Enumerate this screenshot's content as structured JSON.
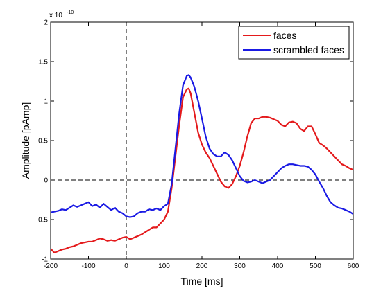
{
  "chart_data": {
    "type": "line",
    "title": "",
    "xlabel": "Time [ms]",
    "ylabel": "Amplitude [pAmp]",
    "xlim": [
      -200,
      600
    ],
    "ylim": [
      -1,
      2
    ],
    "y_scale_factor_label": "x 10",
    "y_scale_exponent_label": "-10",
    "x_ticks": [
      -200,
      -100,
      0,
      100,
      200,
      300,
      400,
      500,
      600
    ],
    "x_tick_labels": [
      "-200",
      "-100",
      "0",
      "100",
      "200",
      "300",
      "400",
      "500",
      "600"
    ],
    "y_ticks": [
      -1,
      -0.5,
      0,
      0.5,
      1,
      1.5,
      2
    ],
    "y_tick_labels": [
      "-1",
      "-0.5",
      "0",
      "0.5",
      "1",
      "1.5",
      "2"
    ],
    "grid": false,
    "legend_position": "top-right",
    "reference_lines": {
      "x": 0,
      "y": 0
    },
    "series": [
      {
        "name": "faces",
        "color": "#e41a1c",
        "x": [
          -200,
          -190,
          -180,
          -170,
          -160,
          -150,
          -140,
          -130,
          -120,
          -110,
          -100,
          -90,
          -80,
          -70,
          -60,
          -50,
          -40,
          -30,
          -20,
          -10,
          0,
          10,
          20,
          30,
          40,
          50,
          60,
          70,
          80,
          90,
          100,
          110,
          120,
          130,
          140,
          150,
          160,
          165,
          170,
          180,
          190,
          200,
          210,
          220,
          230,
          240,
          250,
          260,
          270,
          280,
          290,
          300,
          310,
          320,
          330,
          340,
          350,
          360,
          370,
          380,
          390,
          400,
          410,
          420,
          430,
          440,
          450,
          460,
          470,
          480,
          490,
          500,
          510,
          520,
          530,
          540,
          550,
          560,
          570,
          580,
          590,
          600
        ],
        "y": [
          -0.87,
          -0.92,
          -0.9,
          -0.88,
          -0.87,
          -0.85,
          -0.84,
          -0.82,
          -0.8,
          -0.79,
          -0.78,
          -0.78,
          -0.76,
          -0.74,
          -0.75,
          -0.77,
          -0.76,
          -0.77,
          -0.75,
          -0.73,
          -0.72,
          -0.75,
          -0.73,
          -0.71,
          -0.69,
          -0.66,
          -0.63,
          -0.6,
          -0.6,
          -0.55,
          -0.5,
          -0.4,
          -0.1,
          0.3,
          0.7,
          1.05,
          1.15,
          1.16,
          1.1,
          0.85,
          0.6,
          0.45,
          0.35,
          0.28,
          0.18,
          0.08,
          -0.02,
          -0.08,
          -0.1,
          -0.05,
          0.05,
          0.18,
          0.35,
          0.55,
          0.72,
          0.78,
          0.78,
          0.8,
          0.8,
          0.79,
          0.77,
          0.75,
          0.7,
          0.68,
          0.73,
          0.74,
          0.72,
          0.65,
          0.62,
          0.68,
          0.68,
          0.58,
          0.47,
          0.44,
          0.4,
          0.35,
          0.3,
          0.25,
          0.2,
          0.18,
          0.15,
          0.13
        ]
      },
      {
        "name": "scrambled faces",
        "color": "#1a1ae4",
        "x": [
          -200,
          -190,
          -180,
          -170,
          -160,
          -150,
          -140,
          -130,
          -120,
          -110,
          -100,
          -90,
          -80,
          -70,
          -60,
          -50,
          -40,
          -30,
          -20,
          -10,
          0,
          10,
          20,
          30,
          40,
          50,
          60,
          70,
          80,
          90,
          100,
          110,
          120,
          130,
          140,
          150,
          160,
          165,
          170,
          180,
          190,
          200,
          210,
          220,
          230,
          240,
          250,
          260,
          270,
          280,
          290,
          300,
          310,
          320,
          330,
          340,
          350,
          360,
          370,
          380,
          390,
          400,
          410,
          420,
          430,
          440,
          450,
          460,
          470,
          480,
          490,
          500,
          510,
          520,
          530,
          540,
          550,
          560,
          570,
          580,
          590,
          600
        ],
        "y": [
          -0.41,
          -0.4,
          -0.39,
          -0.37,
          -0.38,
          -0.35,
          -0.32,
          -0.34,
          -0.32,
          -0.3,
          -0.28,
          -0.33,
          -0.31,
          -0.35,
          -0.3,
          -0.34,
          -0.38,
          -0.35,
          -0.4,
          -0.42,
          -0.46,
          -0.47,
          -0.46,
          -0.42,
          -0.4,
          -0.4,
          -0.37,
          -0.38,
          -0.36,
          -0.38,
          -0.33,
          -0.3,
          -0.05,
          0.4,
          0.85,
          1.2,
          1.32,
          1.33,
          1.3,
          1.18,
          1.0,
          0.78,
          0.55,
          0.4,
          0.33,
          0.3,
          0.3,
          0.35,
          0.32,
          0.25,
          0.15,
          0.05,
          -0.01,
          -0.03,
          -0.02,
          0.0,
          -0.02,
          -0.04,
          -0.02,
          0.0,
          0.05,
          0.1,
          0.15,
          0.18,
          0.2,
          0.2,
          0.19,
          0.18,
          0.18,
          0.17,
          0.13,
          0.07,
          -0.02,
          -0.1,
          -0.2,
          -0.28,
          -0.32,
          -0.35,
          -0.36,
          -0.38,
          -0.4,
          -0.43
        ]
      }
    ]
  }
}
